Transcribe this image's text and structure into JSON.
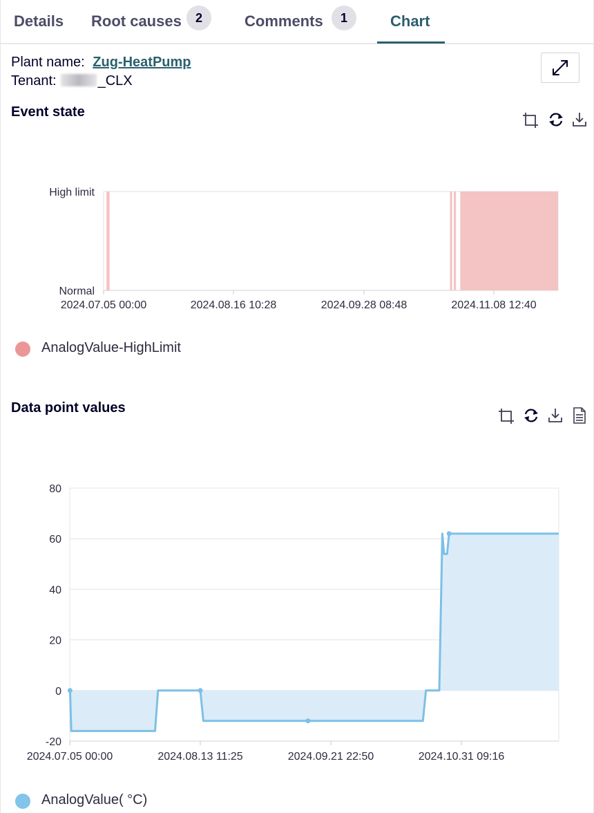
{
  "tabs": [
    {
      "label": "Details",
      "badge": null,
      "active": false
    },
    {
      "label": "Root causes",
      "badge": "2",
      "active": false
    },
    {
      "label": "Comments",
      "badge": "1",
      "active": false
    },
    {
      "label": "Chart",
      "badge": null,
      "active": true
    }
  ],
  "info": {
    "plant_label": "Plant name:",
    "plant_value": "Zug-HeatPump",
    "tenant_label": "Tenant:",
    "tenant_value_suffix": "_CLX"
  },
  "toolbar_icons": [
    "crop-icon",
    "refresh-icon",
    "download-icon",
    "document-icon"
  ],
  "colors": {
    "tab_active": "#2b5f6e",
    "event_fill": "#f4c3c3",
    "event_legend": "#eb9797",
    "analog_line": "#7cc0e6",
    "analog_fill": "#dbecf8",
    "analog_legend": "#82c4ea"
  },
  "chart_data": [
    {
      "type": "area",
      "title": "Event state",
      "y_categories": [
        "Normal",
        "High limit"
      ],
      "x_ticks": [
        "2024.07.05 00:00",
        "2024.08.16 10:28",
        "2024.09.28 08:48",
        "2024.11.08 12:40"
      ],
      "x_range": [
        "2024-07-05T00:00",
        "2024-12-10T00:00"
      ],
      "series": [
        {
          "name": "AnalogValue-HighLimit",
          "intervals_high_limit": [
            [
              "2024-07-06T00:00",
              "2024-07-07T02:00"
            ],
            [
              "2024-11-02T10:00",
              "2024-11-03T04:00"
            ],
            [
              "2024-11-03T18:00",
              "2024-11-04T12:00"
            ],
            [
              "2024-11-06T00:00",
              "2024-12-10T00:00"
            ]
          ]
        }
      ],
      "grid": true,
      "legend": "bottom-left"
    },
    {
      "type": "area",
      "title": "Data point values",
      "x_ticks": [
        "2024.07.05 00:00",
        "2024.08.13 11:25",
        "2024.09.21 22:50",
        "2024.10.31 09:16"
      ],
      "x_range": [
        "2024-07-05T00:00",
        "2024-12-14T00:00"
      ],
      "y_ticks": [
        80,
        60,
        40,
        20,
        0,
        -20
      ],
      "ylim": [
        -20,
        80
      ],
      "series": [
        {
          "name": "AnalogValue( °C)",
          "points": [
            {
              "x": "2024-07-05T02:00",
              "y": 0
            },
            {
              "x": "2024-07-05T12:00",
              "y": -16
            },
            {
              "x": "2024-08-02T06:00",
              "y": -16
            },
            {
              "x": "2024-08-03T06:00",
              "y": 0
            },
            {
              "x": "2024-08-17T06:00",
              "y": 0
            },
            {
              "x": "2024-08-18T06:00",
              "y": -12
            },
            {
              "x": "2024-10-30T00:00",
              "y": -12
            },
            {
              "x": "2024-10-31T00:00",
              "y": 0
            },
            {
              "x": "2024-11-04T10:00",
              "y": 0
            },
            {
              "x": "2024-11-05T10:00",
              "y": 62
            },
            {
              "x": "2024-11-06T00:00",
              "y": 54
            },
            {
              "x": "2024-11-07T00:00",
              "y": 54
            },
            {
              "x": "2024-11-07T16:00",
              "y": 62
            },
            {
              "x": "2024-12-14T00:00",
              "y": 62
            }
          ],
          "markers": [
            {
              "x": "2024-07-05T02:00",
              "y": 0
            },
            {
              "x": "2024-08-17T06:00",
              "y": 0
            },
            {
              "x": "2024-09-21T22:00",
              "y": -12
            },
            {
              "x": "2024-11-07T16:00",
              "y": 62
            }
          ]
        }
      ],
      "grid": true,
      "legend": "bottom-left"
    }
  ]
}
